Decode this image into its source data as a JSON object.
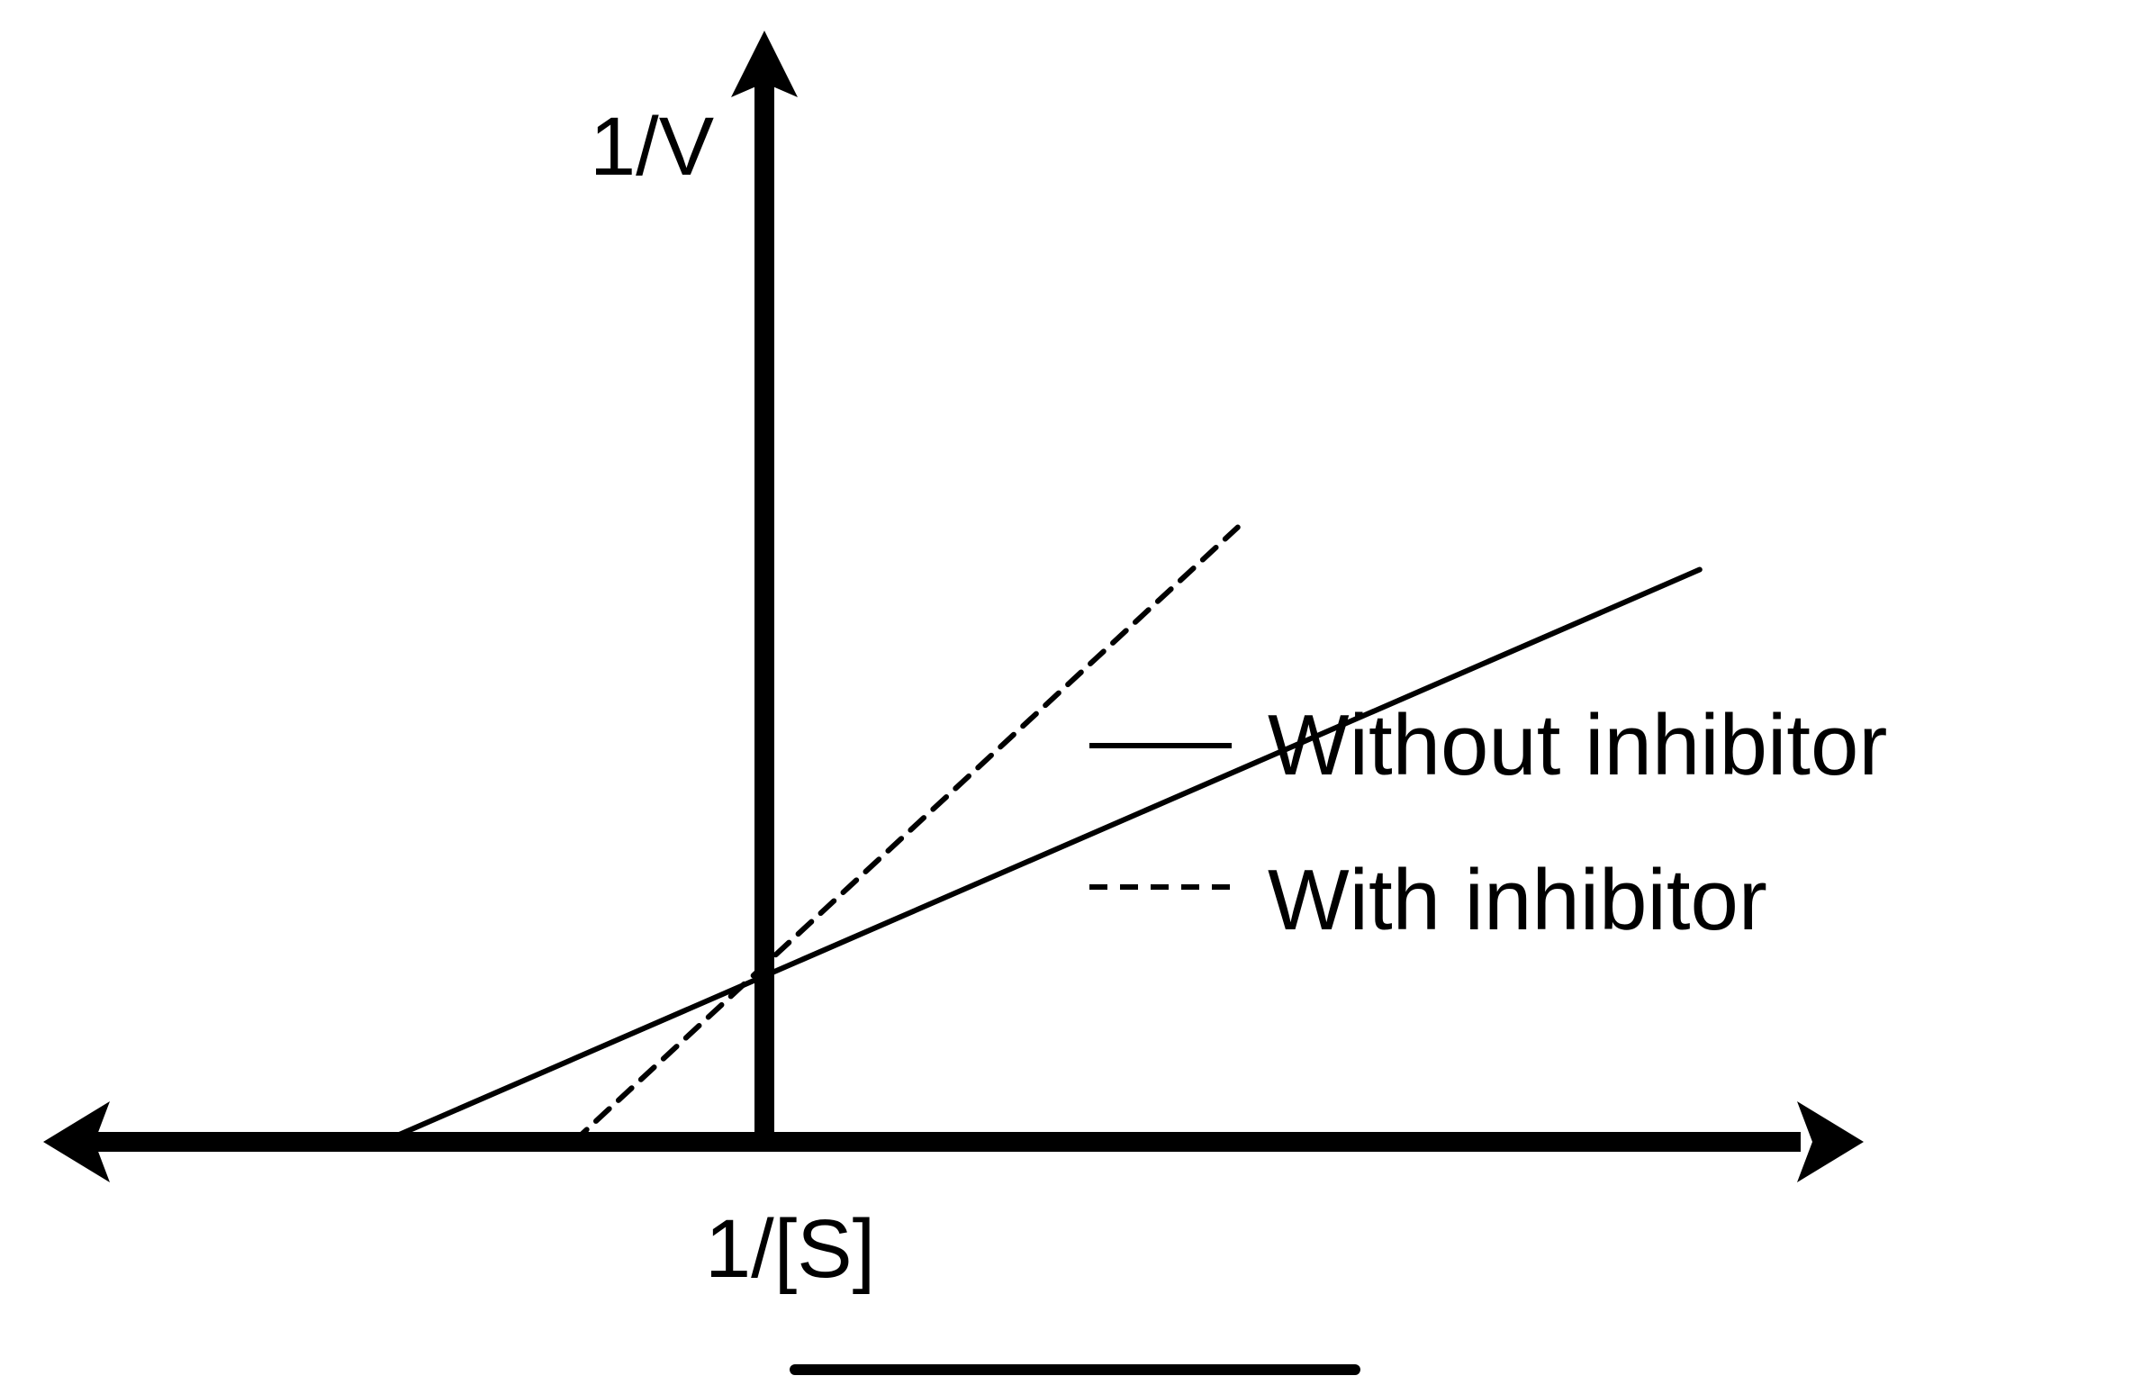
{
  "chart_data": {
    "type": "line",
    "title": "",
    "xlabel": "1/[S]",
    "ylabel": "1/V",
    "grid": false,
    "legend_position": "right",
    "xlim": [
      -1,
      3
    ],
    "ylim": [
      0,
      3.6
    ],
    "series": [
      {
        "name": "Without inhibitor",
        "style": "solid",
        "color": "#000000",
        "x": [
          -1,
          2.45
        ],
        "y": [
          0,
          3.38
        ]
      },
      {
        "name": "With inhibitor",
        "style": "dashed",
        "color": "#000000",
        "x": [
          -0.5,
          1.24
        ],
        "y": [
          0,
          3.63
        ]
      }
    ]
  }
}
